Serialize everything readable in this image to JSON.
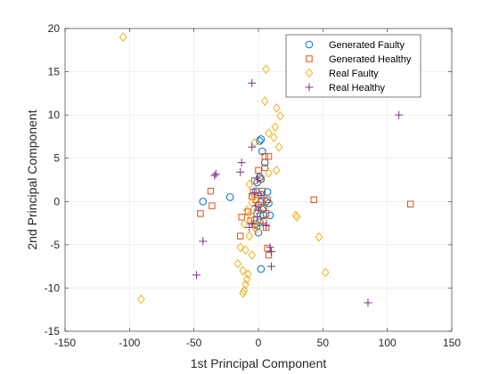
{
  "chart_data": {
    "type": "scatter",
    "title": "",
    "xlabel": "1st Principal Component",
    "ylabel": "2nd Principal Component",
    "xlim": [
      -150,
      150
    ],
    "ylim": [
      -15,
      20
    ],
    "xticks": [
      -150,
      -100,
      -50,
      0,
      50,
      100,
      150
    ],
    "yticks": [
      -15,
      -10,
      -5,
      0,
      5,
      10,
      15,
      20
    ],
    "grid": true,
    "legend_position": "top-right",
    "series": [
      {
        "name": "Generated Faulty",
        "marker": "circle",
        "color": "#0072BD",
        "points": [
          [
            -43,
            0
          ],
          [
            -22,
            0.5
          ],
          [
            1,
            7
          ],
          [
            2,
            7.2
          ],
          [
            3,
            5.8
          ],
          [
            5,
            4.5
          ],
          [
            1,
            2.8
          ],
          [
            -1,
            2.2
          ],
          [
            2,
            2.6
          ],
          [
            -2,
            1.2
          ],
          [
            2,
            0.8
          ],
          [
            7,
            1.1
          ],
          [
            6,
            0
          ],
          [
            8,
            -0.2
          ],
          [
            0,
            -0.4
          ],
          [
            3,
            -0.9
          ],
          [
            -1,
            -1.4
          ],
          [
            4,
            -1.6
          ],
          [
            9,
            -1.6
          ],
          [
            1,
            -2.4
          ],
          [
            -2,
            -2.6
          ],
          [
            0,
            -3.6
          ],
          [
            2,
            -7.8
          ]
        ]
      },
      {
        "name": "Generated Healthy",
        "marker": "square",
        "color": "#D95319",
        "points": [
          [
            -45,
            -1.4
          ],
          [
            -37,
            1.2
          ],
          [
            -36,
            -0.5
          ],
          [
            -14,
            -4.0
          ],
          [
            -13,
            -1.8
          ],
          [
            -8,
            -1.2
          ],
          [
            -6,
            -2.2
          ],
          [
            -5,
            0.6
          ],
          [
            -4,
            1.1
          ],
          [
            -3,
            2.4
          ],
          [
            -2,
            0.2
          ],
          [
            0,
            3.6
          ],
          [
            2,
            2.6
          ],
          [
            2,
            0.0
          ],
          [
            3,
            1.2
          ],
          [
            4,
            -0.8
          ],
          [
            5,
            5.2
          ],
          [
            5,
            3.9
          ],
          [
            7,
            0.2
          ],
          [
            8,
            5.2
          ],
          [
            6,
            -1.4
          ],
          [
            4,
            -2.2
          ],
          [
            6,
            -3.0
          ],
          [
            7,
            -5.4
          ],
          [
            8,
            -6.2
          ],
          [
            -1,
            -2.8
          ],
          [
            43,
            0.2
          ],
          [
            118,
            -0.3
          ]
        ]
      },
      {
        "name": "Real Faulty",
        "marker": "diamond",
        "color": "#EDB120",
        "points": [
          [
            -105,
            19
          ],
          [
            -91,
            -11.3
          ],
          [
            6,
            15.3
          ],
          [
            5,
            11.6
          ],
          [
            14,
            10.8
          ],
          [
            17,
            9.9
          ],
          [
            13,
            8.6
          ],
          [
            12,
            7.4
          ],
          [
            8,
            7.9
          ],
          [
            16,
            6.3
          ],
          [
            -3,
            6.8
          ],
          [
            14,
            3.6
          ],
          [
            8,
            3.3
          ],
          [
            -7,
            2.0
          ],
          [
            -3,
            0.6
          ],
          [
            -9,
            -1.0
          ],
          [
            -6,
            -1.6
          ],
          [
            -4,
            -2.4
          ],
          [
            -11,
            -2.6
          ],
          [
            -2,
            -3.2
          ],
          [
            -7,
            -4.0
          ],
          [
            -14,
            -5.3
          ],
          [
            -10,
            -5.6
          ],
          [
            -5,
            -6.2
          ],
          [
            -16,
            -7.2
          ],
          [
            -12,
            -8.0
          ],
          [
            -8,
            -8.4
          ],
          [
            -9,
            -9.0
          ],
          [
            -10,
            -9.6
          ],
          [
            -11,
            -10.3
          ],
          [
            -12,
            -10.6
          ],
          [
            29,
            -1.6
          ],
          [
            30,
            -1.8
          ],
          [
            47,
            -4.1
          ],
          [
            52,
            -8.2
          ],
          [
            -5,
            -0.2
          ],
          [
            -1,
            -1.0
          ]
        ]
      },
      {
        "name": "Real Healthy",
        "marker": "plus",
        "color": "#7E2F8E",
        "points": [
          [
            -5,
            13.7
          ],
          [
            -33,
            3.2
          ],
          [
            -34,
            3.0
          ],
          [
            -13,
            4.5
          ],
          [
            -14,
            3.4
          ],
          [
            -5,
            6.3
          ],
          [
            -1,
            2.7
          ],
          [
            -3,
            1.0
          ],
          [
            -2,
            -0.5
          ],
          [
            -1,
            -1.8
          ],
          [
            2,
            0.7
          ],
          [
            0,
            -1.0
          ],
          [
            -5,
            -2.6
          ],
          [
            -7,
            -3.0
          ],
          [
            -43,
            -4.6
          ],
          [
            -48,
            -8.5
          ],
          [
            6,
            -2.8
          ],
          [
            9,
            -5.3
          ],
          [
            10,
            -5.8
          ],
          [
            10,
            -7.5
          ],
          [
            109,
            10
          ],
          [
            85,
            -11.7
          ]
        ]
      }
    ]
  }
}
